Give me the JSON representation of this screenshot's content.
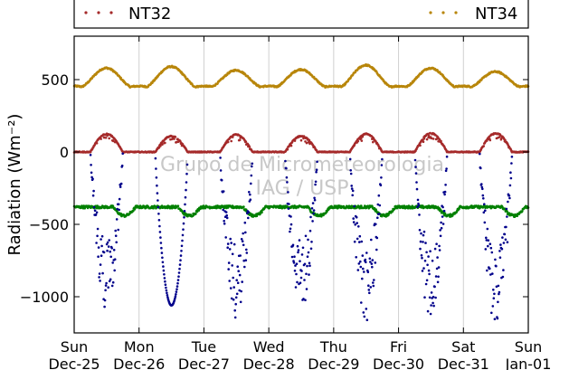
{
  "chart_data": {
    "type": "scatter",
    "ylabel": "Radiation (Wm⁻²)",
    "ylim": [
      -1250,
      800
    ],
    "yticks": [
      500,
      0,
      -500,
      -1000
    ],
    "ytick_labels": [
      "500",
      "0",
      "−500",
      "−1000"
    ],
    "xlim": [
      0,
      7
    ],
    "xticks": [
      {
        "x": 0,
        "day": "Sun",
        "date": "Dec-25"
      },
      {
        "x": 1,
        "day": "Mon",
        "date": "Dec-26"
      },
      {
        "x": 2,
        "day": "Tue",
        "date": "Dec-27"
      },
      {
        "x": 3,
        "day": "Wed",
        "date": "Dec-28"
      },
      {
        "x": 4,
        "day": "Thu",
        "date": "Dec-29"
      },
      {
        "x": 5,
        "day": "Fri",
        "date": "Dec-30"
      },
      {
        "x": 6,
        "day": "Sat",
        "date": "Dec-31"
      },
      {
        "x": 7,
        "day": "Sun",
        "date": "Jan-01"
      }
    ],
    "grid": "vertical",
    "legend": {
      "placement": "top",
      "entries": [
        "NT32",
        "NT34"
      ]
    },
    "watermark": [
      "Grupo de Micrometeorologia",
      "IAG / USP"
    ],
    "series": [
      {
        "name": "NT34",
        "color": "#b8860b",
        "base": 440,
        "amp": 140,
        "noon_peaks": [
          580,
          590,
          565,
          570,
          600,
          580,
          555
        ]
      },
      {
        "name": "NT32",
        "color": "#a52a2a",
        "base": 0,
        "noon_peaks": [
          125,
          110,
          120,
          110,
          125,
          130,
          130
        ]
      },
      {
        "color": "#008000",
        "base": -380,
        "dip": -440
      },
      {
        "color": "#00008b",
        "min_per_day": [
          -1090,
          -1060,
          -1150,
          -1100,
          -1180,
          -1200,
          -1210
        ]
      }
    ]
  }
}
